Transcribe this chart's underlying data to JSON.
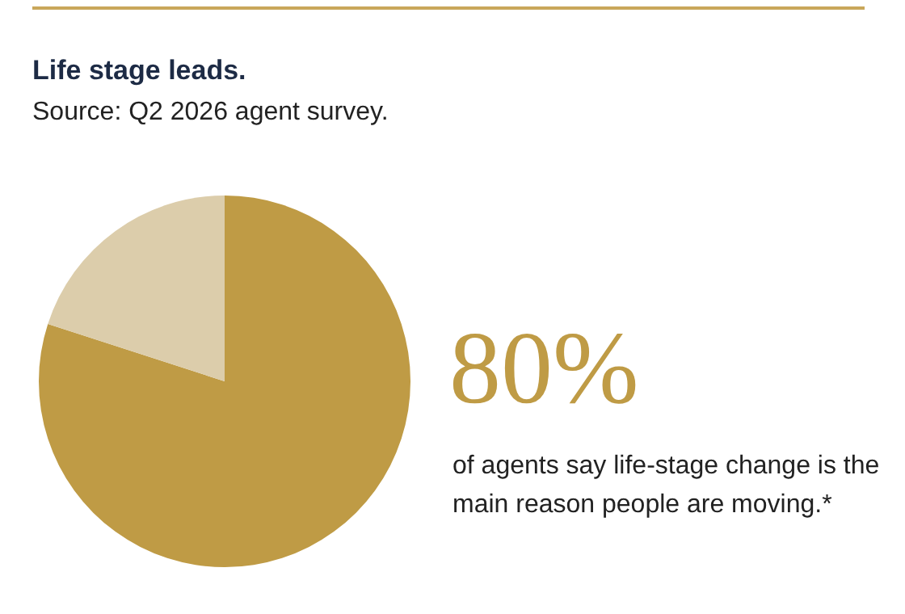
{
  "chart_data": {
    "type": "pie",
    "title": "Life stage leads.",
    "subtitle": "Source: Q2 2026 agent survey.",
    "categories": [
      null,
      null
    ],
    "values": [
      80,
      20
    ],
    "colors": [
      "#bf9b45",
      "#dccdab"
    ],
    "value_labels": [
      "80%",
      null
    ],
    "annotations": [
      "of agents say life-stage change is the main reason people are moving.*"
    ],
    "legend": false
  }
}
